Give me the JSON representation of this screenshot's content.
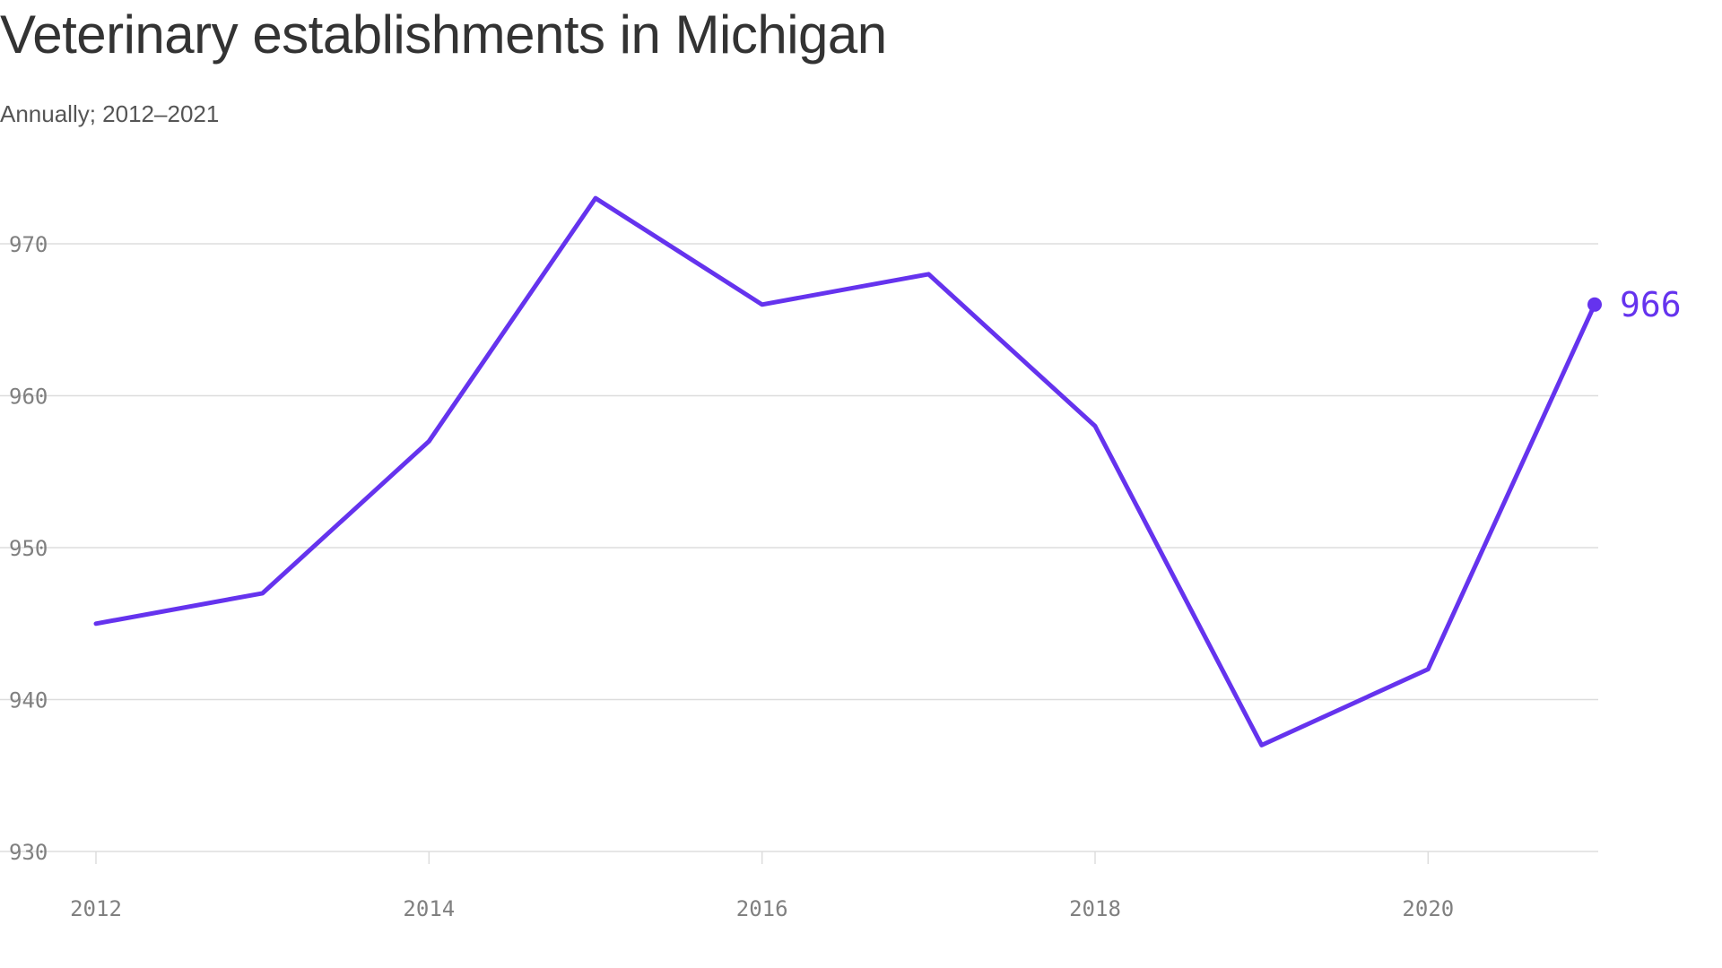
{
  "chart_data": {
    "type": "line",
    "title": "Veterinary establishments in Michigan",
    "subtitle": "Annually; 2012–2021",
    "xlabel": "",
    "ylabel": "",
    "x": [
      2012,
      2013,
      2014,
      2015,
      2016,
      2017,
      2018,
      2019,
      2020,
      2021
    ],
    "values": [
      945,
      947,
      957,
      973,
      966,
      968,
      958,
      937,
      942,
      966
    ],
    "xlim": [
      2012,
      2021
    ],
    "ylim": [
      930,
      970
    ],
    "x_ticks": [
      "2012",
      "2014",
      "2016",
      "2018",
      "2020"
    ],
    "y_ticks": [
      "930",
      "940",
      "950",
      "960",
      "970"
    ],
    "end_label": "966",
    "grid": "horizontal",
    "legend": "none",
    "colors": {
      "line": "#6533ee",
      "grid": "#dddddd",
      "tick_text": "#808080"
    }
  }
}
